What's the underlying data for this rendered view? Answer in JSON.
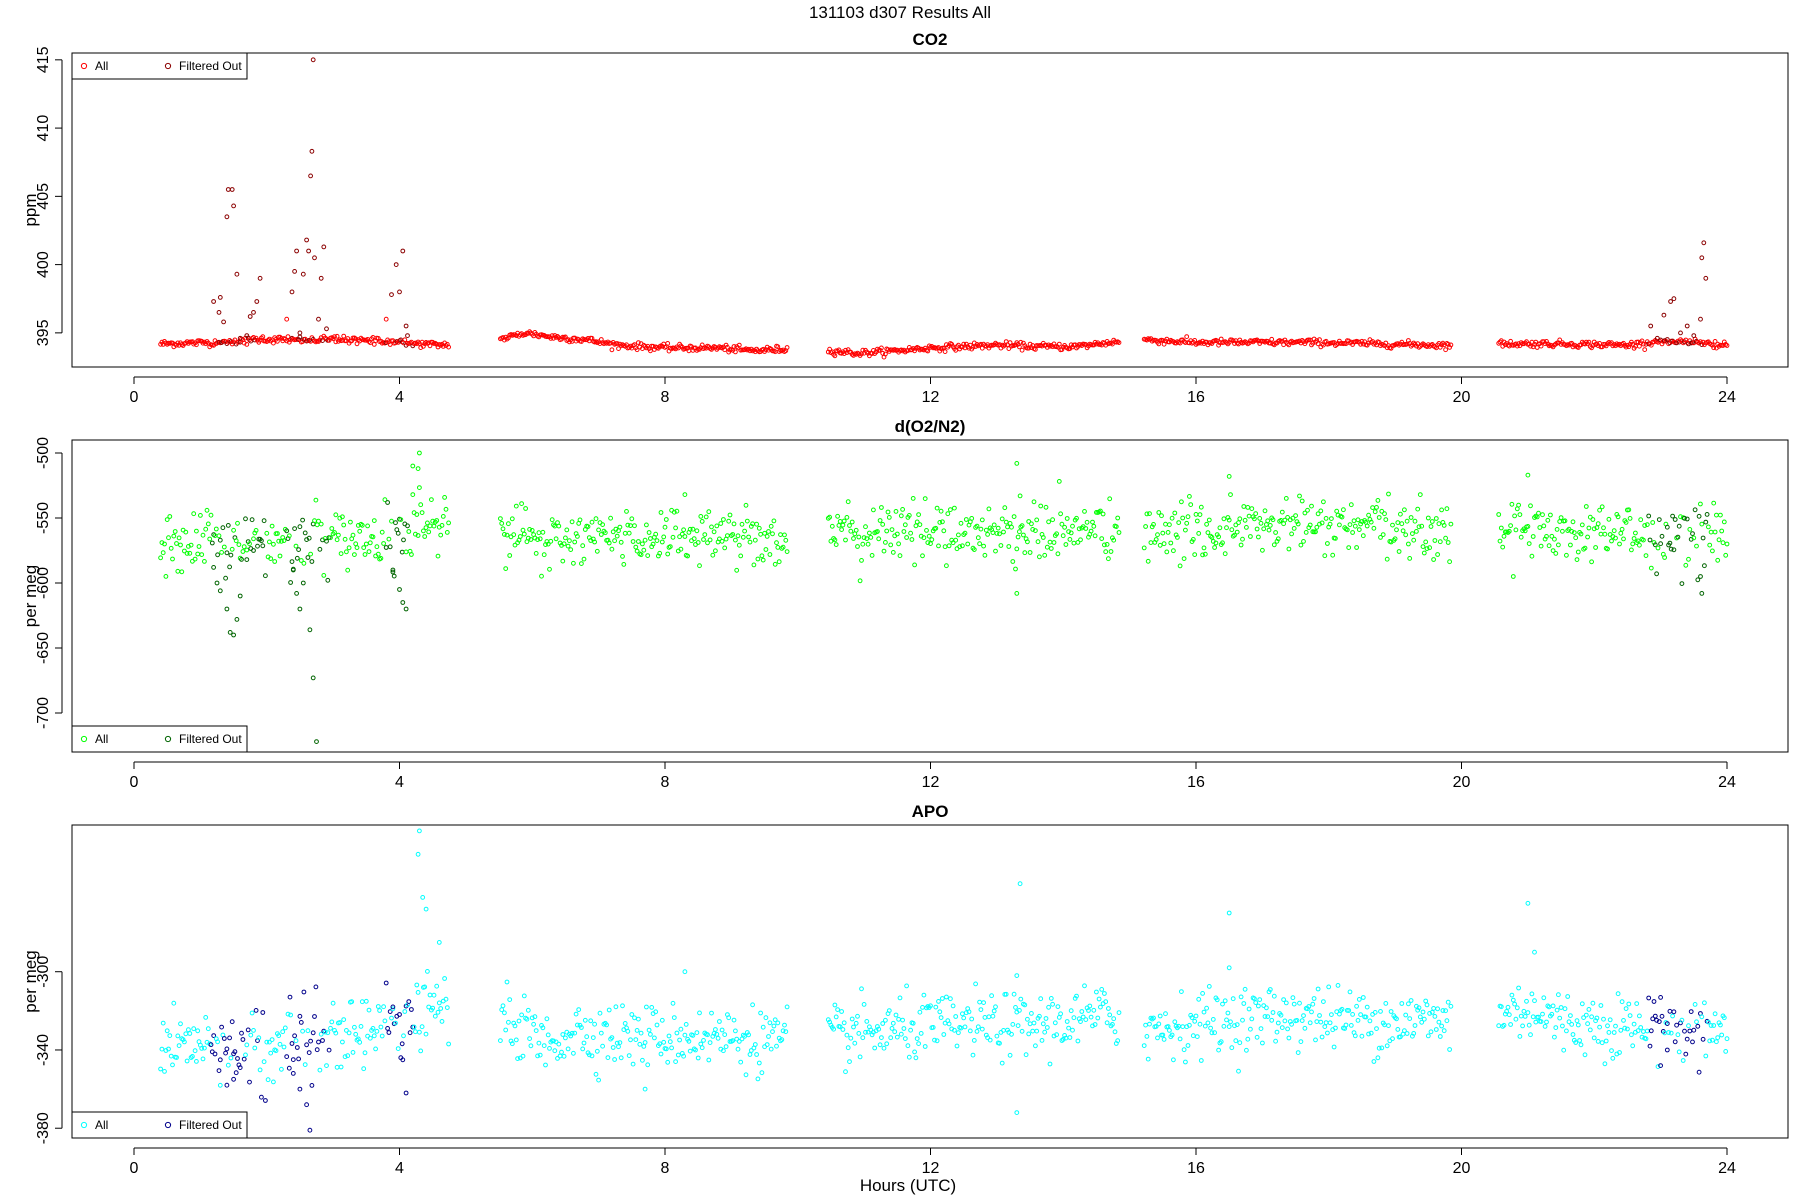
{
  "figure": {
    "title": "131103   d307   Results All",
    "xlabel": "Hours (UTC)"
  },
  "chart_data": [
    {
      "type": "scatter",
      "title": "CO2",
      "ylabel": "ppm",
      "xlim": [
        0,
        24
      ],
      "ylim": [
        392.5,
        415.5
      ],
      "x_ticks": [
        0,
        4,
        8,
        12,
        16,
        20,
        24
      ],
      "y_ticks": [
        395,
        400,
        405,
        410,
        415
      ],
      "legend": {
        "position": "top-left",
        "entries": [
          "All",
          "Filtered Out"
        ]
      },
      "colors": {
        "all": "#ff0000",
        "filtered": "#8b0000"
      },
      "baseline": [
        [
          0.4,
          394.2
        ],
        [
          1.2,
          394.3
        ],
        [
          1.9,
          394.5
        ],
        [
          2.4,
          394.5
        ],
        [
          3.0,
          394.5
        ],
        [
          3.8,
          394.4
        ],
        [
          4.3,
          394.2
        ],
        [
          4.6,
          394.1
        ],
        [
          5.5,
          394.5
        ],
        [
          5.9,
          395.0
        ],
        [
          6.3,
          394.7
        ],
        [
          6.8,
          394.5
        ],
        [
          7.3,
          394.1
        ],
        [
          8.0,
          393.9
        ],
        [
          8.8,
          393.9
        ],
        [
          9.3,
          393.7
        ],
        [
          9.8,
          393.8
        ],
        [
          10.5,
          393.7
        ],
        [
          10.9,
          393.5
        ],
        [
          11.5,
          393.7
        ],
        [
          12.0,
          393.9
        ],
        [
          13.0,
          394.1
        ],
        [
          13.6,
          394.0
        ],
        [
          14.2,
          394.0
        ],
        [
          14.7,
          394.3
        ],
        [
          15.2,
          394.5
        ],
        [
          16.0,
          394.3
        ],
        [
          16.9,
          394.3
        ],
        [
          17.8,
          394.3
        ],
        [
          18.7,
          394.2
        ],
        [
          19.7,
          394.1
        ],
        [
          20.6,
          394.2
        ],
        [
          21.5,
          394.2
        ],
        [
          22.5,
          394.1
        ],
        [
          23.0,
          394.4
        ],
        [
          23.6,
          394.3
        ],
        [
          24.0,
          394.0
        ]
      ],
      "gaps": [
        [
          4.75,
          5.5
        ],
        [
          9.85,
          10.45
        ],
        [
          14.85,
          15.2
        ],
        [
          19.85,
          20.55
        ]
      ],
      "noise": 0.12,
      "spikes": [
        [
          1.2,
          397.3
        ],
        [
          1.28,
          396.5
        ],
        [
          1.3,
          397.6
        ],
        [
          1.35,
          395.8
        ],
        [
          1.4,
          403.5
        ],
        [
          1.42,
          405.5
        ],
        [
          1.48,
          405.5
        ],
        [
          1.5,
          404.3
        ],
        [
          1.55,
          399.3
        ],
        [
          1.6,
          394.6
        ],
        [
          1.7,
          394.8
        ],
        [
          1.75,
          396.2
        ],
        [
          1.8,
          396.5
        ],
        [
          1.85,
          397.3
        ],
        [
          1.9,
          399.0
        ],
        [
          2.3,
          396.0
        ],
        [
          2.38,
          398.0
        ],
        [
          2.42,
          399.5
        ],
        [
          2.45,
          401.0
        ],
        [
          2.5,
          395.0
        ],
        [
          2.55,
          399.3
        ],
        [
          2.6,
          401.8
        ],
        [
          2.63,
          401.0
        ],
        [
          2.66,
          406.5
        ],
        [
          2.68,
          408.3
        ],
        [
          2.7,
          415.0
        ],
        [
          2.72,
          400.5
        ],
        [
          2.78,
          396.0
        ],
        [
          2.82,
          399.0
        ],
        [
          2.86,
          401.3
        ],
        [
          2.9,
          395.3
        ],
        [
          3.8,
          396.0
        ],
        [
          3.88,
          397.8
        ],
        [
          3.95,
          400.0
        ],
        [
          4.0,
          398.0
        ],
        [
          4.05,
          401.0
        ],
        [
          4.1,
          395.5
        ],
        [
          4.12,
          394.8
        ],
        [
          22.85,
          395.5
        ],
        [
          22.95,
          394.6
        ],
        [
          23.05,
          396.3
        ],
        [
          23.15,
          397.3
        ],
        [
          23.2,
          397.5
        ],
        [
          23.3,
          395.0
        ],
        [
          23.4,
          395.5
        ],
        [
          23.5,
          394.8
        ],
        [
          23.6,
          396.0
        ],
        [
          23.62,
          400.5
        ],
        [
          23.65,
          401.6
        ],
        [
          23.68,
          399.0
        ]
      ]
    },
    {
      "type": "scatter",
      "title": "d(O2/N2)",
      "ylabel": "per meg",
      "xlim": [
        0,
        24
      ],
      "ylim": [
        -730,
        -490
      ],
      "x_ticks": [
        0,
        4,
        8,
        12,
        16,
        20,
        24
      ],
      "y_ticks": [
        -500,
        -550,
        -600,
        -650,
        -700
      ],
      "legend": {
        "position": "bottom-left",
        "entries": [
          "All",
          "Filtered Out"
        ]
      },
      "colors": {
        "all": "#00ff00",
        "filtered": "#006400"
      },
      "baseline": [
        [
          0.4,
          -572
        ],
        [
          1.5,
          -570
        ],
        [
          2.5,
          -570
        ],
        [
          3.5,
          -565
        ],
        [
          4.0,
          -560
        ],
        [
          4.4,
          -550
        ],
        [
          4.6,
          -548
        ],
        [
          5.5,
          -558
        ],
        [
          5.8,
          -560
        ],
        [
          6.2,
          -575
        ],
        [
          6.6,
          -565
        ],
        [
          7.5,
          -565
        ],
        [
          8.5,
          -562
        ],
        [
          9.8,
          -565
        ],
        [
          10.5,
          -565
        ],
        [
          11.5,
          -560
        ],
        [
          12.5,
          -560
        ],
        [
          13.5,
          -562
        ],
        [
          14.7,
          -558
        ],
        [
          15.2,
          -565
        ],
        [
          16.0,
          -560
        ],
        [
          17.5,
          -555
        ],
        [
          18.5,
          -558
        ],
        [
          19.7,
          -560
        ],
        [
          20.6,
          -558
        ],
        [
          21.5,
          -560
        ],
        [
          22.5,
          -560
        ],
        [
          23.0,
          -568
        ],
        [
          24.0,
          -562
        ]
      ],
      "gaps": [
        [
          4.75,
          5.5
        ],
        [
          9.85,
          10.45
        ],
        [
          14.85,
          15.2
        ],
        [
          19.85,
          20.55
        ]
      ],
      "noise": 11,
      "spikes": [
        [
          1.2,
          -588
        ],
        [
          1.25,
          -600
        ],
        [
          1.3,
          -606
        ],
        [
          1.4,
          -620
        ],
        [
          1.45,
          -638
        ],
        [
          1.5,
          -640
        ],
        [
          1.55,
          -628
        ],
        [
          1.6,
          -610
        ],
        [
          1.7,
          -582
        ],
        [
          1.8,
          -575
        ],
        [
          2.4,
          -590
        ],
        [
          2.45,
          -608
        ],
        [
          2.5,
          -620
        ],
        [
          2.55,
          -600
        ],
        [
          2.65,
          -636
        ],
        [
          2.7,
          -673
        ],
        [
          2.75,
          -722
        ],
        [
          3.9,
          -590
        ],
        [
          4.0,
          -605
        ],
        [
          4.05,
          -615
        ],
        [
          4.1,
          -620
        ],
        [
          4.2,
          -510
        ],
        [
          4.3,
          -500
        ],
        [
          4.28,
          -512
        ],
        [
          8.3,
          -532
        ],
        [
          13.3,
          -508
        ],
        [
          13.35,
          -533
        ],
        [
          13.3,
          -608
        ],
        [
          16.5,
          -518
        ],
        [
          21.0,
          -517
        ],
        [
          23.6,
          -595
        ],
        [
          23.62,
          -608
        ]
      ]
    },
    {
      "type": "scatter",
      "title": "APO",
      "ylabel": "per meg",
      "xlim": [
        0,
        24
      ],
      "ylim": [
        -385,
        -225
      ],
      "x_ticks": [
        0,
        4,
        8,
        12,
        16,
        20,
        24
      ],
      "y_ticks": [
        -300,
        -340,
        -380
      ],
      "legend": {
        "position": "bottom-left",
        "entries": [
          "All",
          "Filtered Out"
        ]
      },
      "colors": {
        "all": "#00ffff",
        "filtered": "#00008b"
      },
      "baseline": [
        [
          0.4,
          -338
        ],
        [
          1.5,
          -337
        ],
        [
          2.5,
          -334
        ],
        [
          3.5,
          -330
        ],
        [
          4.0,
          -325
        ],
        [
          4.4,
          -320
        ],
        [
          4.6,
          -318
        ],
        [
          5.5,
          -325
        ],
        [
          5.8,
          -328
        ],
        [
          6.2,
          -338
        ],
        [
          6.6,
          -330
        ],
        [
          7.5,
          -333
        ],
        [
          8.5,
          -333
        ],
        [
          9.8,
          -335
        ],
        [
          10.5,
          -333
        ],
        [
          11.5,
          -330
        ],
        [
          12.5,
          -327
        ],
        [
          13.5,
          -328
        ],
        [
          14.7,
          -322
        ],
        [
          15.2,
          -330
        ],
        [
          16.0,
          -326
        ],
        [
          17.5,
          -322
        ],
        [
          18.5,
          -325
        ],
        [
          19.7,
          -325
        ],
        [
          20.6,
          -322
        ],
        [
          21.0,
          -318
        ],
        [
          21.5,
          -326
        ],
        [
          22.5,
          -327
        ],
        [
          23.0,
          -332
        ],
        [
          24.0,
          -328
        ]
      ],
      "gaps": [
        [
          4.75,
          5.5
        ],
        [
          9.85,
          10.45
        ],
        [
          14.85,
          15.2
        ],
        [
          19.85,
          20.55
        ]
      ],
      "noise": 8,
      "spikes": [
        [
          1.3,
          -345
        ],
        [
          1.4,
          -358
        ],
        [
          1.5,
          -355
        ],
        [
          2.35,
          -313
        ],
        [
          2.4,
          -352
        ],
        [
          2.5,
          -360
        ],
        [
          2.6,
          -368
        ],
        [
          2.65,
          -381
        ],
        [
          3.9,
          -318
        ],
        [
          4.05,
          -345
        ],
        [
          4.1,
          -362
        ],
        [
          4.3,
          -228
        ],
        [
          4.28,
          -240
        ],
        [
          4.35,
          -262
        ],
        [
          4.4,
          -268
        ],
        [
          4.6,
          -285
        ],
        [
          8.3,
          -300
        ],
        [
          7.7,
          -360
        ],
        [
          13.3,
          -302
        ],
        [
          13.35,
          -255
        ],
        [
          13.3,
          -372
        ],
        [
          16.5,
          -270
        ],
        [
          16.5,
          -298
        ],
        [
          21.0,
          -265
        ],
        [
          21.1,
          -290
        ],
        [
          23.0,
          -348
        ],
        [
          23.1,
          -340
        ]
      ]
    }
  ]
}
